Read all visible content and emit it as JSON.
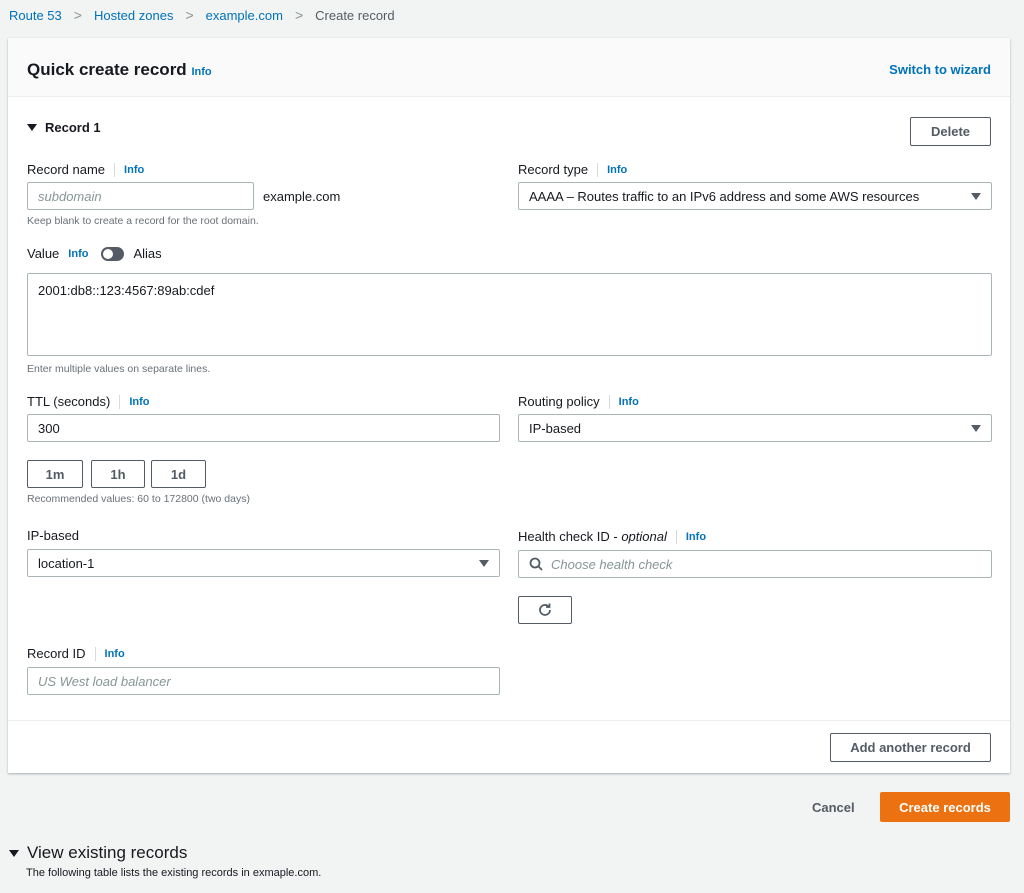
{
  "breadcrumb": {
    "items": [
      "Route 53",
      "Hosted zones",
      "example.com"
    ],
    "current": "Create record"
  },
  "header": {
    "title": "Quick create record",
    "info": "Info",
    "switch": "Switch to wizard"
  },
  "record": {
    "title": "Record 1",
    "delete": "Delete",
    "name": {
      "label": "Record name",
      "info": "Info",
      "placeholder": "subdomain",
      "suffix": "example.com",
      "hint": "Keep blank to create a record for the root domain."
    },
    "type": {
      "label": "Record type",
      "info": "Info",
      "value": "AAAA – Routes traffic to an IPv6 address and some AWS resources"
    },
    "value": {
      "label": "Value",
      "info": "Info",
      "alias": "Alias",
      "alias_on": false,
      "text": "2001:db8::123:4567:89ab:cdef",
      "hint": "Enter multiple values on separate lines."
    },
    "ttl": {
      "label": "TTL (seconds)",
      "info": "Info",
      "value": "300",
      "buttons": [
        "1m",
        "1h",
        "1d"
      ],
      "hint": "Recommended values: 60 to 172800 (two days)"
    },
    "routing": {
      "label": "Routing policy",
      "info": "Info",
      "value": "IP-based"
    },
    "ipbased": {
      "label": "IP-based",
      "value": "location-1"
    },
    "health": {
      "label": "Health check ID - ",
      "optional": "optional",
      "info": "Info",
      "placeholder": "Choose health check"
    },
    "recordid": {
      "label": "Record ID",
      "info": "Info",
      "placeholder": "US West load balancer"
    }
  },
  "footer": {
    "add": "Add another record",
    "cancel": "Cancel",
    "create": "Create records"
  },
  "existing": {
    "title": "View existing records",
    "desc": "The following table lists the existing records in exmaple.com."
  },
  "colors": {
    "accent": "#0073bb",
    "primary": "#ec7211"
  }
}
